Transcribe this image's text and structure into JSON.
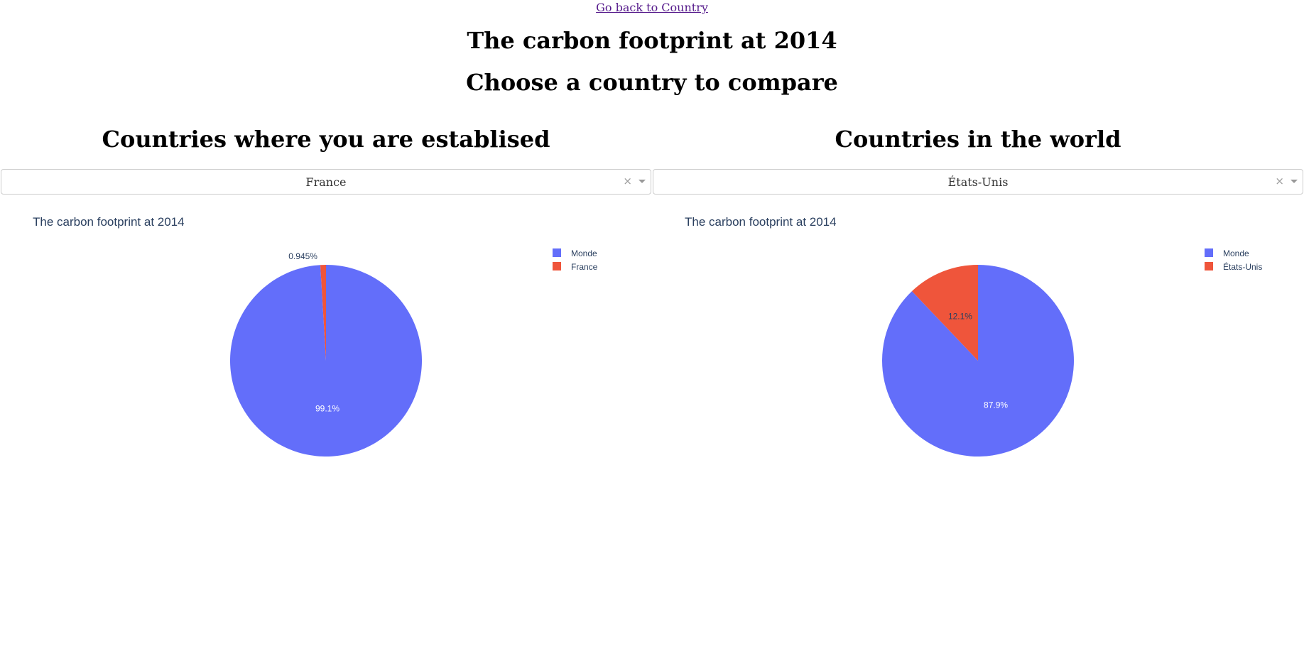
{
  "header": {
    "back_link": "Go back to Country",
    "title": "The carbon footprint at 2014",
    "subtitle": "Choose a country to compare"
  },
  "left": {
    "heading": "Countries where you are establised",
    "selected": "France"
  },
  "right": {
    "heading": "Countries in the world",
    "selected": "États-Unis"
  },
  "chart_data": [
    {
      "type": "pie",
      "title": "The carbon footprint at 2014",
      "labels": [
        "Monde",
        "France"
      ],
      "values": [
        99.055,
        0.945
      ],
      "text_labels": [
        "99.1%",
        "0.945%"
      ],
      "colors": [
        "#636efa",
        "#ef553b"
      ],
      "legend": "top-right"
    },
    {
      "type": "pie",
      "title": "The carbon footprint at 2014",
      "labels": [
        "Monde",
        "États-Unis"
      ],
      "values": [
        87.9,
        12.1
      ],
      "text_labels": [
        "87.9%",
        "12.1%"
      ],
      "colors": [
        "#636efa",
        "#ef553b"
      ],
      "legend": "top-right"
    }
  ]
}
